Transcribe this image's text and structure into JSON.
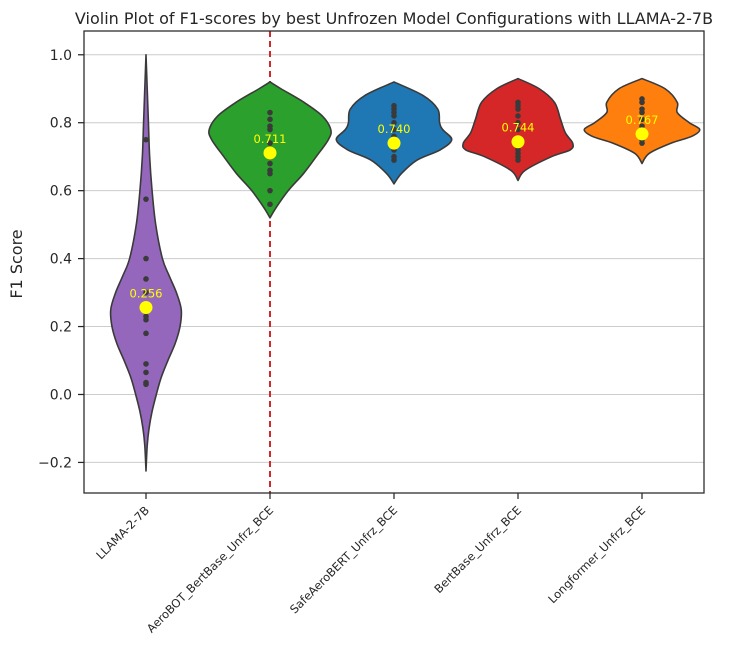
{
  "chart_data": {
    "type": "violin",
    "title": "Violin Plot of F1-scores by best Unfrozen Model Configurations with LLAMA-2-7B",
    "xlabel": "",
    "ylabel": "F1 Score",
    "ylim": [
      -0.29,
      1.07
    ],
    "yticks": [
      {
        "value": 1.0,
        "label": "1.0"
      },
      {
        "value": 0.8,
        "label": "0.8"
      },
      {
        "value": 0.6,
        "label": "0.6"
      },
      {
        "value": 0.4,
        "label": "0.4"
      },
      {
        "value": 0.2,
        "label": "0.2"
      },
      {
        "value": 0.0,
        "label": "0.0"
      },
      {
        "value": -0.2,
        "label": "−0.2"
      }
    ],
    "grid": "horizontal",
    "reference_line": {
      "category_index": 1,
      "style": "dashed",
      "color": "#d62728"
    },
    "categories": [
      "LLAMA-2-7B",
      "AeroBOT_BertBase_Unfrz_BCE",
      "SafeAeroBERT_Unfrz_BCE",
      "BertBase_Unfrz_BCE",
      "Longformer_Unfrz_BCE"
    ],
    "series": [
      {
        "color": "#9467bd",
        "mean": 0.256,
        "mean_label": "0.256",
        "points": [
          0.75,
          0.575,
          0.4,
          0.34,
          0.3,
          0.25,
          0.23,
          0.22,
          0.18,
          0.09,
          0.065,
          0.035,
          0.03
        ],
        "density": [
          [
            -0.225,
            0.0
          ],
          [
            -0.15,
            0.02
          ],
          [
            -0.1,
            0.05
          ],
          [
            -0.05,
            0.1
          ],
          [
            0.0,
            0.17
          ],
          [
            0.05,
            0.25
          ],
          [
            0.1,
            0.36
          ],
          [
            0.15,
            0.48
          ],
          [
            0.2,
            0.56
          ],
          [
            0.25,
            0.58
          ],
          [
            0.3,
            0.5
          ],
          [
            0.35,
            0.38
          ],
          [
            0.4,
            0.27
          ],
          [
            0.5,
            0.16
          ],
          [
            0.6,
            0.1
          ],
          [
            0.7,
            0.06
          ],
          [
            0.8,
            0.04
          ],
          [
            0.9,
            0.02
          ],
          [
            1.0,
            0.0
          ]
        ]
      },
      {
        "color": "#2ca02c",
        "mean": 0.711,
        "mean_label": "0.711",
        "points": [
          0.83,
          0.81,
          0.79,
          0.78,
          0.74,
          0.72,
          0.7,
          0.68,
          0.66,
          0.65,
          0.6,
          0.56
        ],
        "density": [
          [
            0.52,
            0.0
          ],
          [
            0.55,
            0.1
          ],
          [
            0.6,
            0.3
          ],
          [
            0.65,
            0.55
          ],
          [
            0.7,
            0.76
          ],
          [
            0.75,
            0.96
          ],
          [
            0.78,
            1.0
          ],
          [
            0.82,
            0.86
          ],
          [
            0.86,
            0.56
          ],
          [
            0.9,
            0.18
          ],
          [
            0.92,
            0.0
          ]
        ]
      },
      {
        "color": "#1f77b4",
        "mean": 0.74,
        "mean_label": "0.740",
        "points": [
          0.85,
          0.84,
          0.83,
          0.82,
          0.8,
          0.78,
          0.76,
          0.74,
          0.72,
          0.7,
          0.69
        ],
        "density": [
          [
            0.62,
            0.0
          ],
          [
            0.65,
            0.12
          ],
          [
            0.69,
            0.38
          ],
          [
            0.72,
            0.76
          ],
          [
            0.75,
            0.95
          ],
          [
            0.78,
            0.8
          ],
          [
            0.8,
            0.75
          ],
          [
            0.84,
            0.72
          ],
          [
            0.88,
            0.48
          ],
          [
            0.92,
            0.0
          ]
        ]
      },
      {
        "color": "#d62728",
        "mean": 0.744,
        "mean_label": "0.744",
        "points": [
          0.86,
          0.85,
          0.84,
          0.82,
          0.8,
          0.78,
          0.75,
          0.72,
          0.71,
          0.7,
          0.69
        ],
        "density": [
          [
            0.63,
            0.0
          ],
          [
            0.66,
            0.12
          ],
          [
            0.7,
            0.55
          ],
          [
            0.72,
            0.86
          ],
          [
            0.74,
            0.9
          ],
          [
            0.77,
            0.78
          ],
          [
            0.81,
            0.7
          ],
          [
            0.86,
            0.6
          ],
          [
            0.9,
            0.35
          ],
          [
            0.93,
            0.0
          ]
        ]
      },
      {
        "color": "#ff7f0e",
        "mean": 0.767,
        "mean_label": "0.767",
        "points": [
          0.87,
          0.86,
          0.84,
          0.83,
          0.81,
          0.79,
          0.77,
          0.75,
          0.74
        ],
        "density": [
          [
            0.68,
            0.0
          ],
          [
            0.71,
            0.12
          ],
          [
            0.74,
            0.48
          ],
          [
            0.76,
            0.82
          ],
          [
            0.78,
            0.95
          ],
          [
            0.8,
            0.78
          ],
          [
            0.83,
            0.58
          ],
          [
            0.86,
            0.58
          ],
          [
            0.9,
            0.38
          ],
          [
            0.93,
            0.0
          ]
        ]
      }
    ]
  }
}
